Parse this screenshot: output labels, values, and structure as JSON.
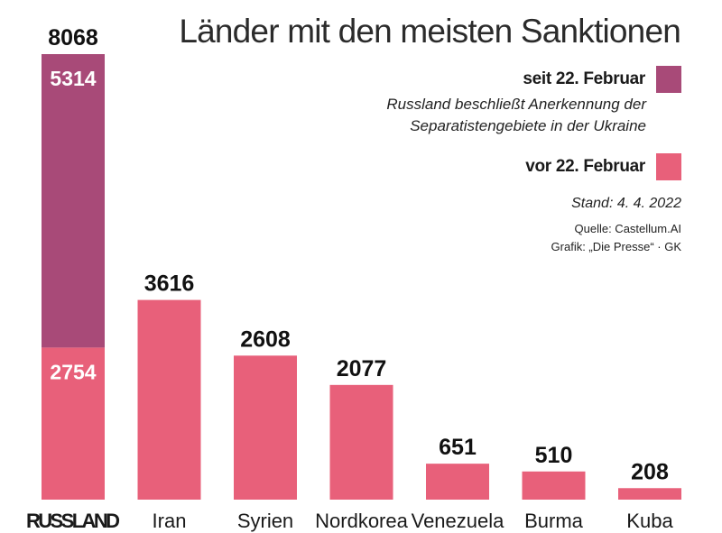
{
  "title": "Länder mit den meisten Sanktionen",
  "legend": {
    "since": {
      "label": "seit 22. Februar",
      "color": "#a84a78"
    },
    "note_line1": "Russland beschließt Anerkennung der",
    "note_line2": "Separatistengebiete in der Ukraine",
    "before": {
      "label": "vor 22. Februar",
      "color": "#e8607a"
    }
  },
  "stand": "Stand: 4. 4. 2022",
  "quelle": "Quelle: Castellum.AI",
  "grafik": "Grafik: „Die Presse“ · GK",
  "chart_data": {
    "type": "bar",
    "categories": [
      "RUSSLAND",
      "Iran",
      "Syrien",
      "Nordkorea",
      "Venezuela",
      "Burma",
      "Kuba"
    ],
    "series": [
      {
        "name": "vor 22. Februar",
        "values": [
          2754,
          3616,
          2608,
          2077,
          651,
          510,
          208
        ],
        "color": "#e8607a"
      },
      {
        "name": "seit 22. Februar",
        "values": [
          5314,
          0,
          0,
          0,
          0,
          0,
          0
        ],
        "color": "#a84a78"
      }
    ],
    "totals": [
      8068,
      3616,
      2608,
      2077,
      651,
      510,
      208
    ],
    "stacked": true,
    "ylim": [
      0,
      8068
    ],
    "grid": false,
    "legend_position": "top-right"
  }
}
